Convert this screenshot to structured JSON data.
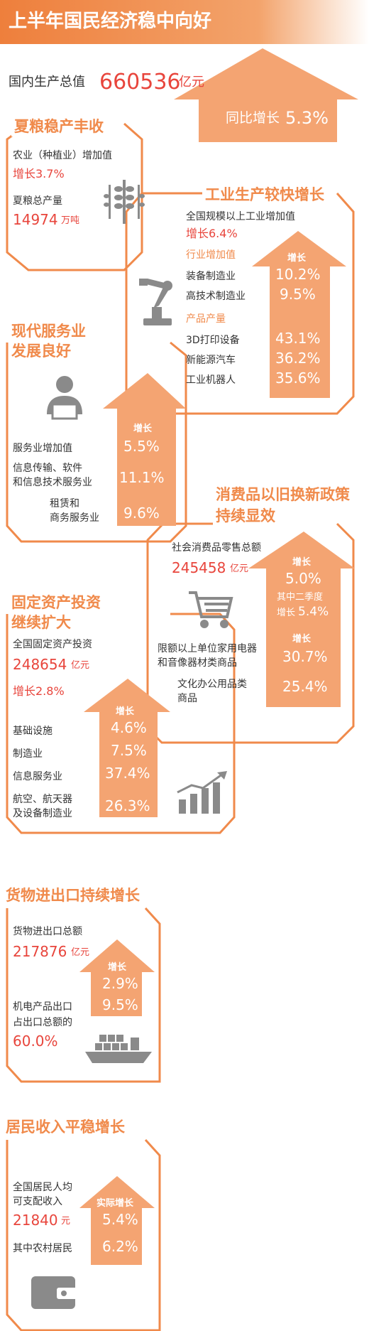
{
  "header": {
    "title": "上半年国民经济稳中向好"
  },
  "gdp": {
    "label": "国内生产总值",
    "value": "660536",
    "unit": "亿元",
    "growth_label": "同比增长",
    "growth_value": "5.3%"
  },
  "grain": {
    "title": "夏粮稳产丰收",
    "agri_label": "农业（种植业）增加值",
    "agri_growth": "增长3.7%",
    "summer_label": "夏粮总产量",
    "summer_value": "14974",
    "summer_unit": "万吨"
  },
  "industry": {
    "title": "工业生产较快增长",
    "main_label": "全国规模以上工业增加值",
    "main_growth": "增长6.4%",
    "col_header": "增长",
    "sub1": "行业增加值",
    "rows1": [
      {
        "name": "装备制造业",
        "value": "10.2%"
      },
      {
        "name": "高技术制造业",
        "value": "9.5%"
      }
    ],
    "sub2": "产品产量",
    "rows2": [
      {
        "name": "3D打印设备",
        "value": "43.1%"
      },
      {
        "name": "新能源汽车",
        "value": "36.2%"
      },
      {
        "name": "工业机器人",
        "value": "35.6%"
      }
    ]
  },
  "services": {
    "title_line1": "现代服务业",
    "title_line2": "发展良好",
    "col_header": "增长",
    "rows": [
      {
        "name": "服务业增加值",
        "value": "5.5%"
      },
      {
        "name": "信息传输、软件",
        "name2": "和信息技术服务业",
        "value": "11.1%"
      },
      {
        "name": "租赁和",
        "name2": "商务服务业",
        "value": "9.6%"
      }
    ]
  },
  "consumer": {
    "title_line1": "消费品以旧换新政策",
    "title_line2": "持续显效",
    "retail_label": "社会消费品零售总额",
    "retail_value": "245458",
    "retail_unit": "亿元",
    "col_header": "增长",
    "retail_growth": "5.0%",
    "q2_label": "其中二季度",
    "q2_prefix": "增长",
    "q2_value": "5.4%",
    "col_header2": "增长",
    "appliance_line1": "限额以上单位家用电器",
    "appliance_line2": "和音像器材类商品",
    "appliance_value": "30.7%",
    "office_line1": "文化办公用品类",
    "office_line2": "商品",
    "office_value": "25.4%"
  },
  "investment": {
    "title_line1": "固定资产投资",
    "title_line2": "继续扩大",
    "main_label": "全国固定资产投资",
    "main_value": "248654",
    "main_unit": "亿元",
    "main_growth": "增长2.8%",
    "col_header": "增长",
    "rows": [
      {
        "name": "基础设施",
        "value": "4.6%"
      },
      {
        "name": "制造业",
        "value": "7.5%"
      },
      {
        "name": "信息服务业",
        "value": "37.4%"
      },
      {
        "name": "航空、航天器",
        "name2": "及设备制造业",
        "value": "26.3%"
      }
    ]
  },
  "trade": {
    "title": "货物进出口持续增长",
    "total_label": "货物进出口总额",
    "total_value": "217876",
    "total_unit": "亿元",
    "col_header": "增长",
    "total_growth": "2.9%",
    "mech_label": "机电产品出口",
    "mech_growth": "9.5%",
    "share_label": "占出口总额的",
    "share_value": "60.0%"
  },
  "income": {
    "title": "居民收入平稳增长",
    "label_line1": "全国居民人均",
    "label_line2": "可支配收入",
    "value": "21840",
    "unit": "元",
    "col_header": "实际增长",
    "growth": "5.4%",
    "rural_label": "其中农村居民",
    "rural_growth": "6.2%"
  },
  "colors": {
    "accent": "#f08a4b",
    "arrow": "#f4a472",
    "red": "#e8453c",
    "gray": "#8a8a8a"
  }
}
